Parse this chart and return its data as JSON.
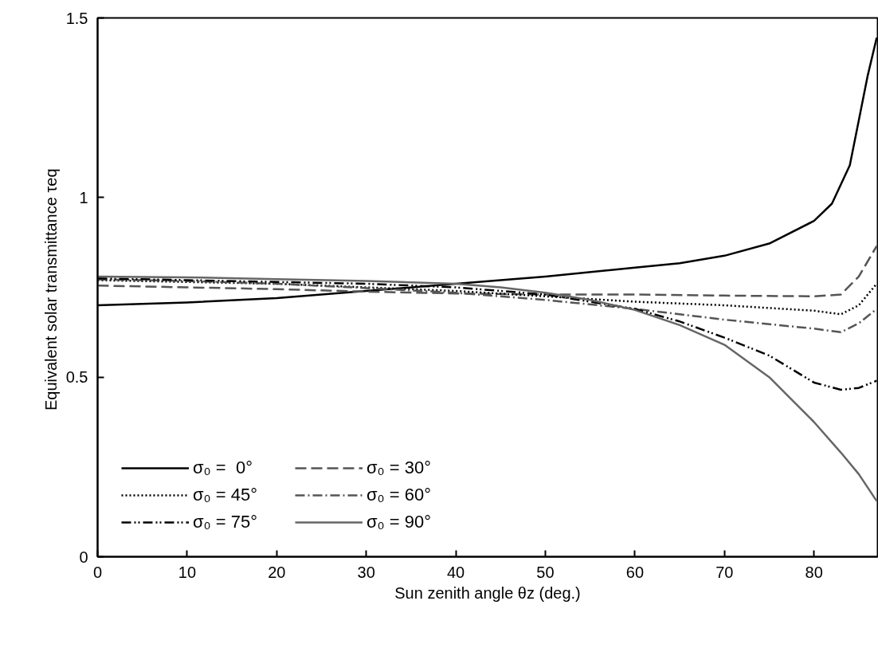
{
  "chart_data": {
    "type": "line",
    "xlabel": "Sun zenith angle θz (deg.)",
    "ylabel": "Equivalent solar transmittance  τeq",
    "xlim": [
      0,
      87.1
    ],
    "xticks": [
      0,
      10,
      20,
      30,
      40,
      50,
      60,
      70,
      80
    ],
    "ylim": [
      0,
      1.5
    ],
    "yticks": [
      0,
      {
        "value": 0.5,
        "label": "0.5"
      },
      1,
      {
        "value": 1.5,
        "label": "1.5"
      }
    ],
    "grid": false,
    "legend": "bottom left",
    "marker": "none",
    "series": [
      {
        "name": "σ₀ =  0°",
        "color": "#000000",
        "line_style": "solid",
        "x": [
          0,
          10,
          20,
          30,
          40,
          50,
          60,
          65,
          70,
          75,
          80,
          82,
          84,
          85,
          86,
          87
        ],
        "values": [
          0.7,
          0.708,
          0.72,
          0.74,
          0.76,
          0.78,
          0.805,
          0.817,
          0.838,
          0.872,
          0.935,
          0.983,
          1.09,
          1.215,
          1.34,
          1.445
        ]
      },
      {
        "name": "σ₀ = 30°",
        "color": "#555555",
        "line_style": "dashed",
        "x": [
          0,
          10,
          20,
          30,
          40,
          50,
          60,
          70,
          80,
          83,
          85,
          87
        ],
        "values": [
          0.755,
          0.75,
          0.745,
          0.738,
          0.733,
          0.73,
          0.73,
          0.727,
          0.725,
          0.73,
          0.78,
          0.865
        ]
      },
      {
        "name": "σ₀ = 45°",
        "color": "#000000",
        "line_style": "dotted",
        "x": [
          0,
          10,
          20,
          30,
          40,
          50,
          60,
          70,
          80,
          83,
          85,
          87
        ],
        "values": [
          0.77,
          0.765,
          0.76,
          0.75,
          0.74,
          0.725,
          0.71,
          0.7,
          0.685,
          0.675,
          0.7,
          0.76
        ]
      },
      {
        "name": "σ₀ = 60°",
        "color": "#555555",
        "line_style": "dashdot",
        "x": [
          0,
          10,
          20,
          30,
          40,
          50,
          60,
          70,
          80,
          83,
          85,
          87
        ],
        "values": [
          0.772,
          0.768,
          0.76,
          0.748,
          0.735,
          0.715,
          0.69,
          0.66,
          0.635,
          0.625,
          0.65,
          0.69
        ]
      },
      {
        "name": "σ₀ = 75°",
        "color": "#000000",
        "line_style": "dashdotdot",
        "x": [
          0,
          10,
          20,
          30,
          40,
          50,
          60,
          65,
          70,
          75,
          80,
          83,
          85,
          87
        ],
        "values": [
          0.775,
          0.77,
          0.765,
          0.76,
          0.75,
          0.73,
          0.69,
          0.655,
          0.61,
          0.56,
          0.485,
          0.465,
          0.47,
          0.49
        ]
      },
      {
        "name": "σ₀ = 90°",
        "color": "#666666",
        "line_style": "solid",
        "x": [
          0,
          10,
          20,
          30,
          40,
          45,
          50,
          55,
          60,
          65,
          70,
          75,
          80,
          83,
          85,
          87
        ],
        "values": [
          0.78,
          0.778,
          0.773,
          0.768,
          0.76,
          0.75,
          0.735,
          0.715,
          0.687,
          0.645,
          0.59,
          0.5,
          0.375,
          0.29,
          0.23,
          0.155
        ]
      }
    ]
  }
}
